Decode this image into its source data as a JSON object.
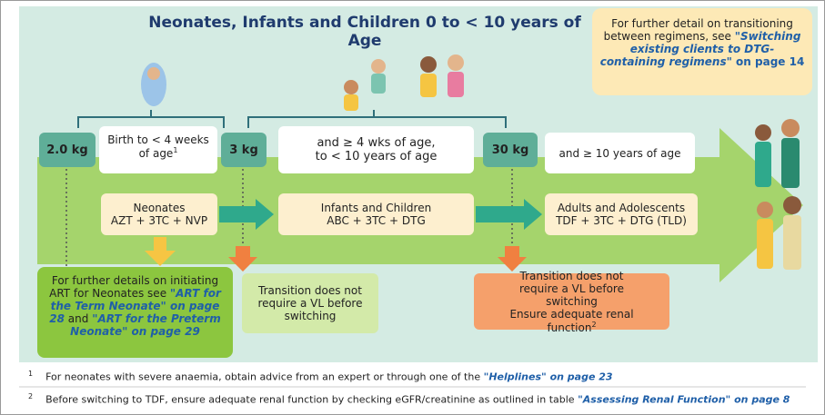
{
  "title": "Neonates, Infants and Children 0 to < 10 years of Age",
  "note": {
    "text": "For further detail on transitioning between regimens, see ",
    "link": "\"Switching existing clients to DTG-containing regimens\"",
    "page": " on page 14"
  },
  "stages": [
    {
      "weight": "2.0 kg",
      "age": "Birth to < 4 weeks of age",
      "age_sup": "1",
      "group": "Neonates",
      "regimen": "AZT + 3TC + NVP"
    },
    {
      "weight": "3 kg",
      "age": "and ≥ 4 wks of age, to < 10 years of age",
      "group": "Infants and Children",
      "regimen": "ABC + 3TC + DTG"
    },
    {
      "weight": "30 kg",
      "age": "and ≥ 10 years of age",
      "group": "Adults and Adolescents",
      "regimen": "TDF + 3TC + DTG  (TLD)"
    }
  ],
  "callouts": [
    {
      "text": "For further details on initiating ART for Neonates see ",
      "link1": "\"ART for the Term Neonate\" on page 28",
      "mid": " and ",
      "link2": "\"ART for the Preterm  Neonate\" on page 29"
    },
    {
      "text": "Transition does not require a VL before switching"
    },
    {
      "text": "Transition does not require a VL before switching",
      "text2": "Ensure adequate renal function",
      "sup": "2"
    }
  ],
  "footnotes": [
    {
      "marker": "1",
      "text": "For neonates with severe anaemia, obtain advice from an expert or through one of the ",
      "link": "\"Helplines\" on page 23"
    },
    {
      "marker": "2",
      "text": "Before switching to TDF, ensure adequate renal function by checking eGFR/creatinine as outlined in table ",
      "link": "\"Assessing Renal Function\" on page 8"
    }
  ]
}
